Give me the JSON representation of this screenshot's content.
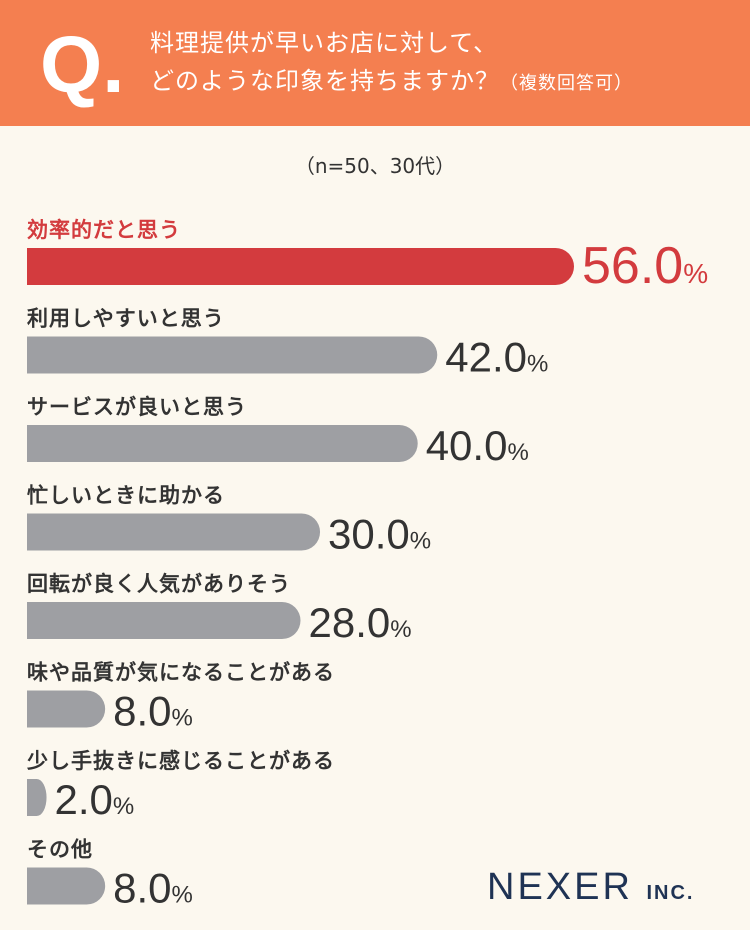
{
  "header": {
    "q_mark": "Q.",
    "question_line1": "料理提供が早いお店に対して、",
    "question_line2": "どのような印象を持ちますか？",
    "question_note": "（複数回答可）"
  },
  "sample_note": "（n=50、30代）",
  "footer": {
    "brand": "NEXER",
    "suffix": "INC."
  },
  "colors": {
    "header": "#f47f50",
    "highlight": "#d33b3e",
    "bar": "#9e9fa3",
    "background": "#fcf8ef"
  },
  "chart_data": {
    "type": "bar",
    "orientation": "horizontal",
    "unit": "%",
    "categories": [
      "効率的だと思う",
      "利用しやすいと思う",
      "サービスが良いと思う",
      "忙しいときに助かる",
      "回転が良く人気がありそう",
      "味や品質が気になることがある",
      "少し手抜きに感じることがある",
      "その他"
    ],
    "values": [
      56.0,
      42.0,
      40.0,
      30.0,
      28.0,
      8.0,
      2.0,
      8.0
    ],
    "value_labels": [
      "56.0",
      "42.0",
      "40.0",
      "30.0",
      "28.0",
      "8.0",
      "2.0",
      "8.0"
    ],
    "highlight_index": 0,
    "xlim": [
      0,
      100
    ]
  }
}
